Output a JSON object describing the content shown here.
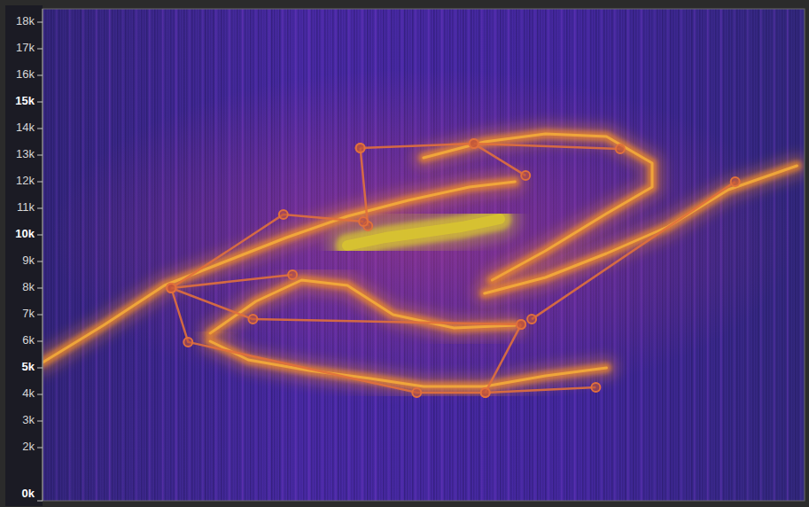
{
  "chart_data": {
    "type": "spectrogram",
    "xlim": [
      0,
      100
    ],
    "ylim": [
      0,
      18500
    ],
    "yticks": [
      {
        "value": 0,
        "label": "0k"
      },
      {
        "value": 2000,
        "label": "2k"
      },
      {
        "value": 3000,
        "label": "3k"
      },
      {
        "value": 4000,
        "label": "4k"
      },
      {
        "value": 5000,
        "label": "5k"
      },
      {
        "value": 6000,
        "label": "6k"
      },
      {
        "value": 7000,
        "label": "7k"
      },
      {
        "value": 8000,
        "label": "8k"
      },
      {
        "value": 9000,
        "label": "9k"
      },
      {
        "value": 10000,
        "label": "10k"
      },
      {
        "value": 11000,
        "label": "11k"
      },
      {
        "value": 12000,
        "label": "12k"
      },
      {
        "value": 13000,
        "label": "13k"
      },
      {
        "value": 14000,
        "label": "14k"
      },
      {
        "value": 15000,
        "label": "15k"
      },
      {
        "value": 16000,
        "label": "16k"
      },
      {
        "value": 17000,
        "label": "17k"
      },
      {
        "value": 18000,
        "label": "18k"
      }
    ],
    "grid": false,
    "tick_labels": "y",
    "series": [
      {
        "type": "band",
        "color": "#f08a2a",
        "x": [
          0,
          8,
          16,
          24,
          32,
          40,
          48,
          56,
          62
        ],
        "values": [
          5200,
          6600,
          8100,
          9000,
          9900,
          10700,
          11300,
          11800,
          12000
        ]
      },
      {
        "type": "band",
        "color": "#f08a2a",
        "x": [
          50,
          58,
          66,
          74,
          80,
          80,
          74,
          66,
          59
        ],
        "values": [
          12900,
          13500,
          13800,
          13700,
          12700,
          11800,
          10800,
          9400,
          8300
        ]
      },
      {
        "type": "band",
        "color": "#f08a2a",
        "x": [
          58,
          66,
          74,
          82,
          90,
          99
        ],
        "values": [
          7800,
          8400,
          9300,
          10300,
          11700,
          12600
        ]
      },
      {
        "type": "band",
        "color": "#f08a2a",
        "x": [
          22,
          28,
          34,
          40,
          46,
          54,
          62
        ],
        "values": [
          6300,
          7500,
          8300,
          8100,
          7000,
          6500,
          6600
        ]
      },
      {
        "type": "band",
        "color": "#f08a2a",
        "x": [
          22,
          27,
          35,
          43,
          50,
          58,
          66,
          74
        ],
        "values": [
          6000,
          5300,
          4900,
          4600,
          4300,
          4300,
          4700,
          5000
        ]
      },
      {
        "type": "band",
        "color": "#d9c72e",
        "x": [
          40,
          45,
          50,
          55,
          60
        ],
        "values": [
          9600,
          9900,
          10100,
          10300,
          10600
        ]
      },
      {
        "type": "line",
        "color": "#e0703c",
        "marker": "circle",
        "x": [
          41.7,
          56.6,
          63.4
        ],
        "values": [
          13270,
          13430,
          12230
        ]
      },
      {
        "type": "line",
        "color": "#e0703c",
        "marker": "circle",
        "x": [
          56.6,
          75.8
        ],
        "values": [
          13430,
          13230
        ]
      },
      {
        "type": "line",
        "color": "#e0703c",
        "marker": "circle",
        "x": [
          41.7,
          42.7
        ],
        "values": [
          13270,
          10330
        ]
      },
      {
        "type": "line",
        "color": "#e0703c",
        "marker": "circle",
        "x": [
          16.9,
          31.6,
          42.1
        ],
        "values": [
          8000,
          10770,
          10500
        ]
      },
      {
        "type": "line",
        "color": "#e0703c",
        "marker": "circle",
        "x": [
          16.9,
          19.1,
          49.1,
          58.1,
          72.6
        ],
        "values": [
          8000,
          5970,
          4070,
          4070,
          4270
        ]
      },
      {
        "type": "line",
        "color": "#e0703c",
        "marker": "circle",
        "x": [
          16.9,
          27.6,
          62.8
        ],
        "values": [
          8000,
          6830,
          6630
        ]
      },
      {
        "type": "line",
        "color": "#e0703c",
        "marker": "circle",
        "x": [
          16.9,
          32.8
        ],
        "values": [
          8000,
          8500
        ]
      },
      {
        "type": "line",
        "color": "#e0703c",
        "marker": "circle",
        "x": [
          62.8,
          58.1
        ],
        "values": [
          6630,
          4070
        ]
      },
      {
        "type": "line",
        "color": "#e0703c",
        "marker": "circle",
        "x": [
          64.2,
          90.9
        ],
        "values": [
          6830,
          12000
        ]
      }
    ]
  }
}
